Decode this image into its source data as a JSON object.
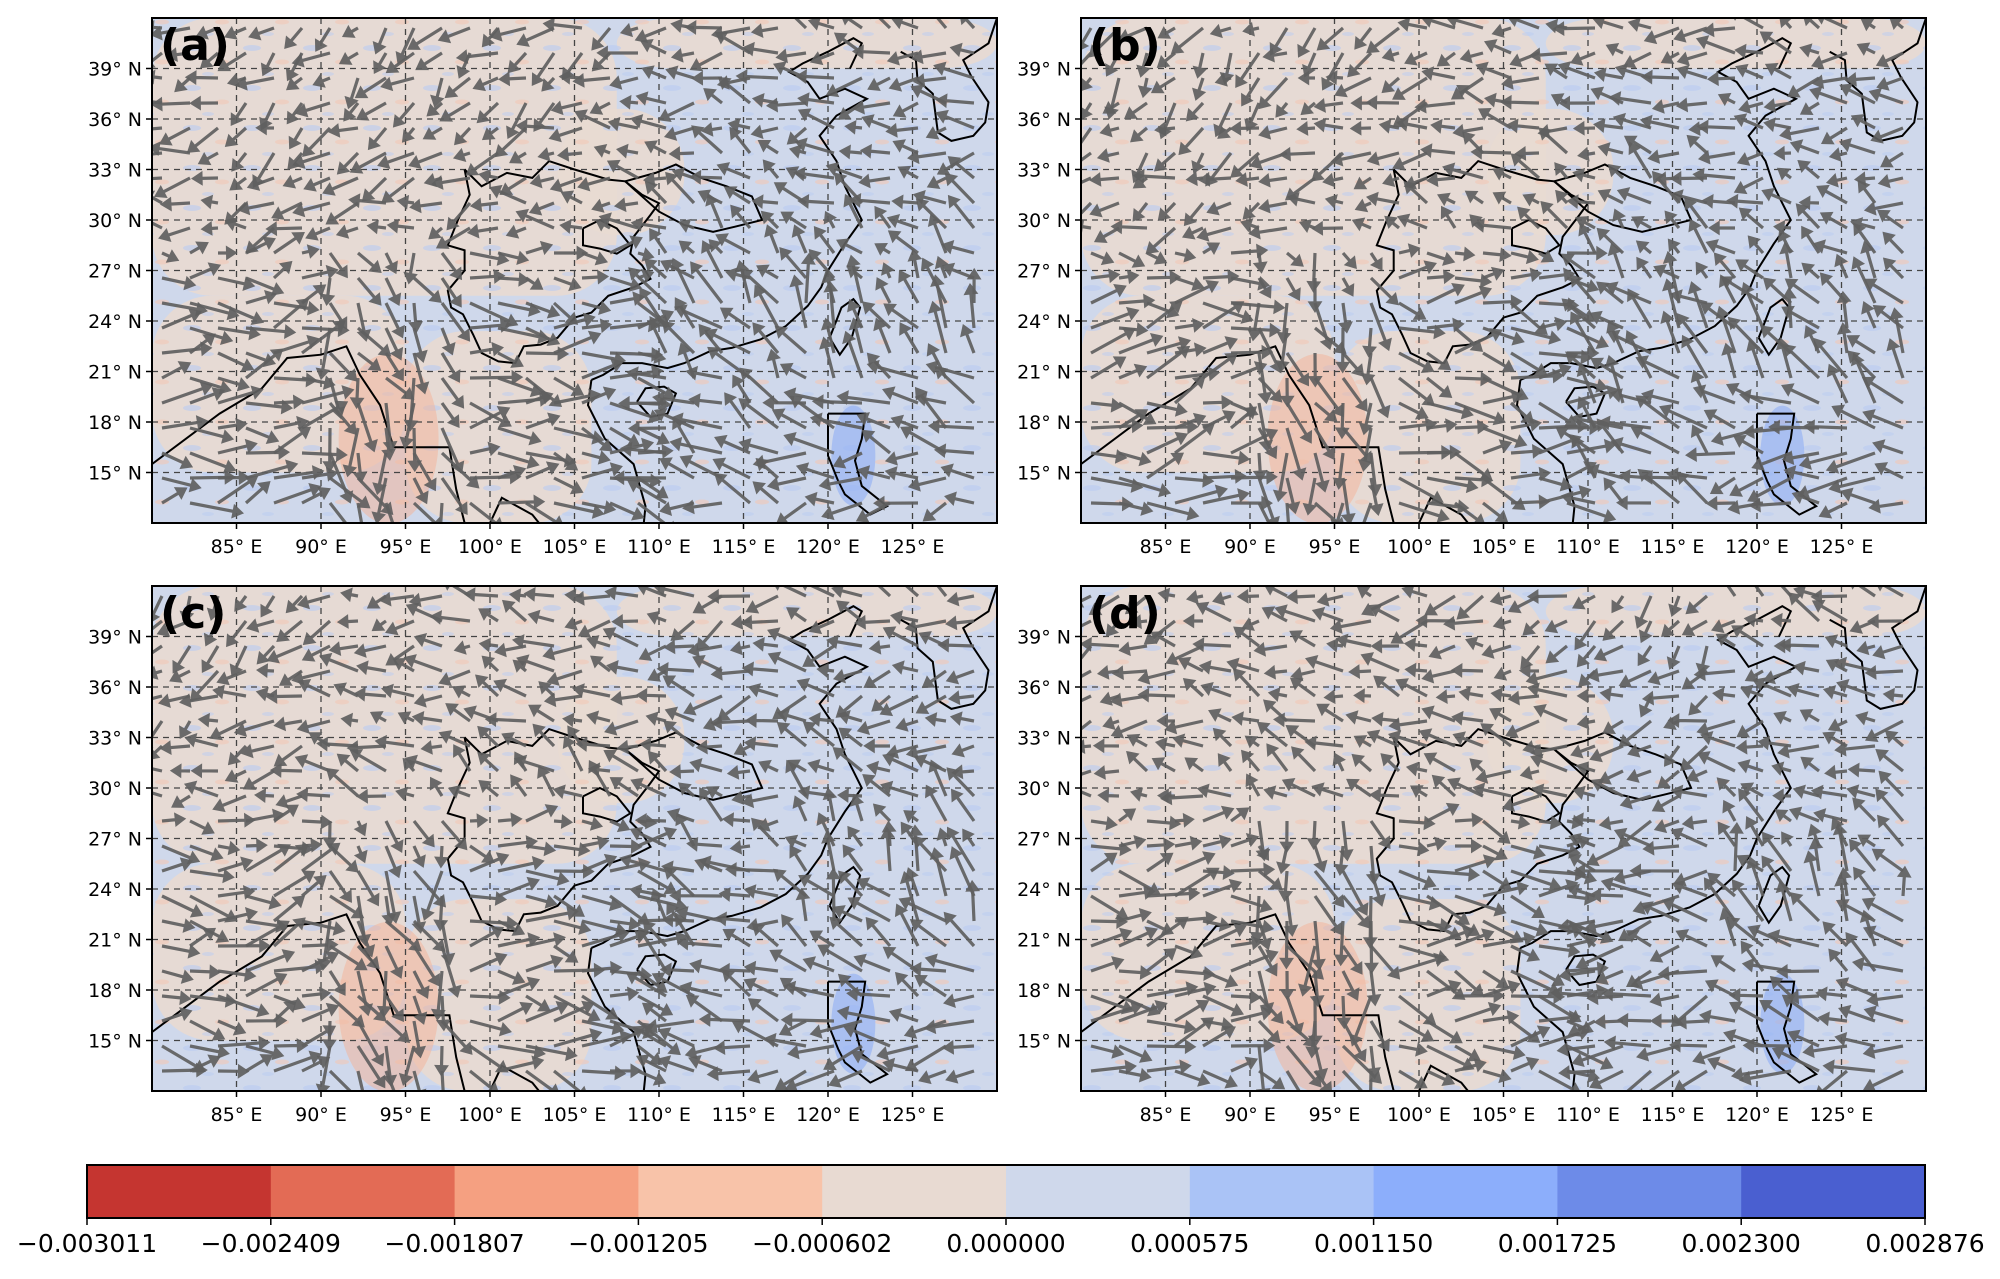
{
  "panels": [
    {
      "label": "(a)"
    },
    {
      "label": "(b)"
    },
    {
      "label": "(c)"
    },
    {
      "label": "(d)"
    }
  ],
  "lat_ticks": [
    "39° N",
    "36° N",
    "33° N",
    "30° N",
    "27° N",
    "24° N",
    "21° N",
    "18° N",
    "15° N"
  ],
  "lon_ticks": [
    "85° E",
    "90° E",
    "95° E",
    "100° E",
    "105° E",
    "110° E",
    "115° E",
    "120° E",
    "125° E"
  ],
  "map_extent": {
    "lon_min": 80,
    "lon_max": 130,
    "lat_min": 12,
    "lat_max": 42
  },
  "colorbar": {
    "tick_labels": [
      "−0.003011",
      "−0.002409",
      "−0.001807",
      "−0.001205",
      "−0.000602",
      "0.000000",
      "0.000575",
      "0.001150",
      "0.001725",
      "0.002300",
      "0.002876"
    ],
    "colors": [
      "#c53530",
      "#e36b55",
      "#f5a081",
      "#f8c3a9",
      "#e8dad2",
      "#cfd8eb",
      "#aac3f6",
      "#8caefb",
      "#6d8be8",
      "#4a5fd0"
    ]
  },
  "background_colors": {
    "positive": "#e8dad2",
    "negative": "#cfd8eb"
  },
  "vector_color": "#606060"
}
